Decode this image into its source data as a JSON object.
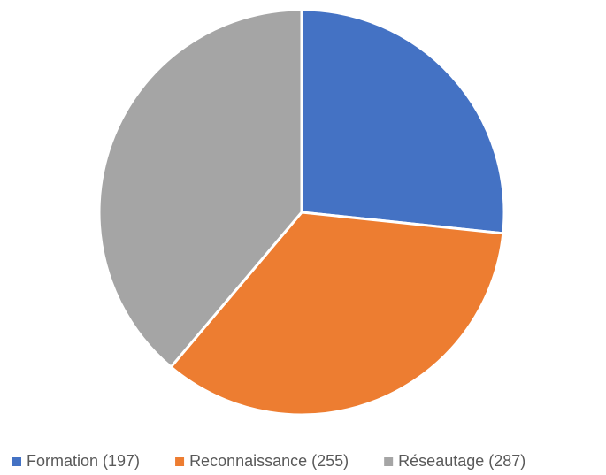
{
  "chart_data": {
    "type": "pie",
    "categories": [
      "Formation (197)",
      "Reconnaissance (255)",
      "Réseautage (287)"
    ],
    "values": [
      197,
      255,
      287
    ],
    "colors": [
      "#4472c4",
      "#ed7d31",
      "#a5a5a5"
    ],
    "legend": "bottom"
  }
}
